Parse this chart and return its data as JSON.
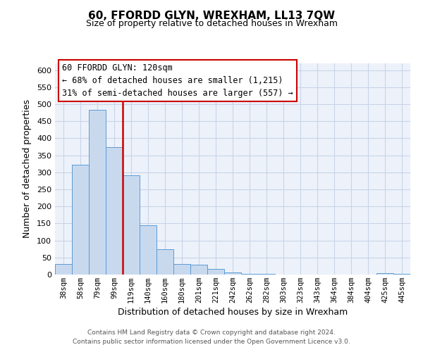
{
  "title": "60, FFORDD GLYN, WREXHAM, LL13 7QW",
  "subtitle": "Size of property relative to detached houses in Wrexham",
  "xlabel": "Distribution of detached houses by size in Wrexham",
  "ylabel": "Number of detached properties",
  "bar_color": "#c8d9ee",
  "bar_edge_color": "#5b9bd5",
  "grid_color": "#c8d4e8",
  "background_color": "#ffffff",
  "plot_bg_color": "#edf2fa",
  "categories": [
    "38sqm",
    "58sqm",
    "79sqm",
    "99sqm",
    "119sqm",
    "140sqm",
    "160sqm",
    "180sqm",
    "201sqm",
    "221sqm",
    "242sqm",
    "262sqm",
    "282sqm",
    "303sqm",
    "323sqm",
    "343sqm",
    "364sqm",
    "384sqm",
    "404sqm",
    "425sqm",
    "445sqm"
  ],
  "values": [
    32,
    323,
    483,
    375,
    292,
    145,
    75,
    31,
    29,
    16,
    7,
    3,
    3,
    1,
    1,
    1,
    1,
    0,
    0,
    4,
    2
  ],
  "ylim": [
    0,
    620
  ],
  "yticks": [
    0,
    50,
    100,
    150,
    200,
    250,
    300,
    350,
    400,
    450,
    500,
    550,
    600
  ],
  "property_line_x": 3.5,
  "property_line_color": "#cc0000",
  "annotation_title": "60 FFORDD GLYN: 120sqm",
  "annotation_line1": "← 68% of detached houses are smaller (1,215)",
  "annotation_line2": "31% of semi-detached houses are larger (557) →",
  "annotation_box_edge": "#cc0000",
  "footer_line1": "Contains HM Land Registry data © Crown copyright and database right 2024.",
  "footer_line2": "Contains public sector information licensed under the Open Government Licence v3.0.",
  "title_fontsize": 11,
  "subtitle_fontsize": 9,
  "annotation_fontsize": 8.5,
  "axis_label_fontsize": 9,
  "tick_fontsize": 8,
  "xtick_fontsize": 7.5,
  "footer_fontsize": 6.5
}
